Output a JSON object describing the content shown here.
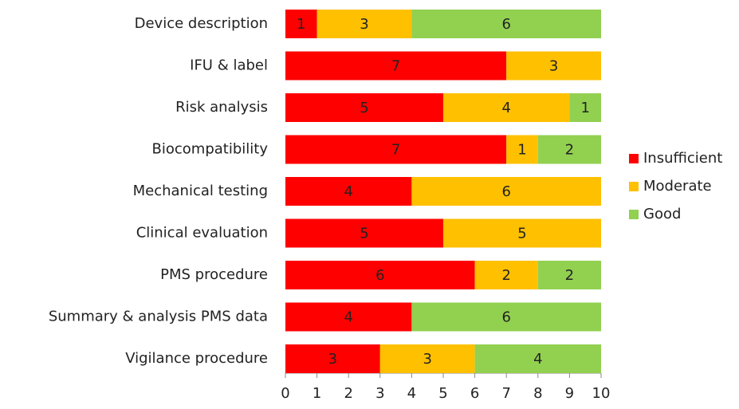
{
  "chart_data": {
    "type": "stacked-bar-horizontal",
    "categories": [
      "Device description",
      "IFU & label",
      "Risk analysis",
      "Biocompatibility",
      "Mechanical testing",
      "Clinical evaluation",
      "PMS procedure",
      "Summary & analysis PMS data",
      "Vigilance procedure"
    ],
    "series": [
      {
        "name": "Insufficient",
        "color": "#ff0000",
        "values": [
          1,
          7,
          5,
          7,
          4,
          5,
          6,
          4,
          3
        ]
      },
      {
        "name": "Moderate",
        "color": "#ffc000",
        "values": [
          3,
          3,
          4,
          1,
          6,
          5,
          2,
          null,
          3
        ]
      },
      {
        "name": "Good",
        "color": "#92d050",
        "values": [
          6,
          null,
          1,
          2,
          null,
          null,
          2,
          6,
          4
        ]
      }
    ],
    "xlim": [
      0,
      10
    ],
    "xticks": [
      0,
      1,
      2,
      3,
      4,
      5,
      6,
      7,
      8,
      9,
      10
    ],
    "legend": "right"
  }
}
